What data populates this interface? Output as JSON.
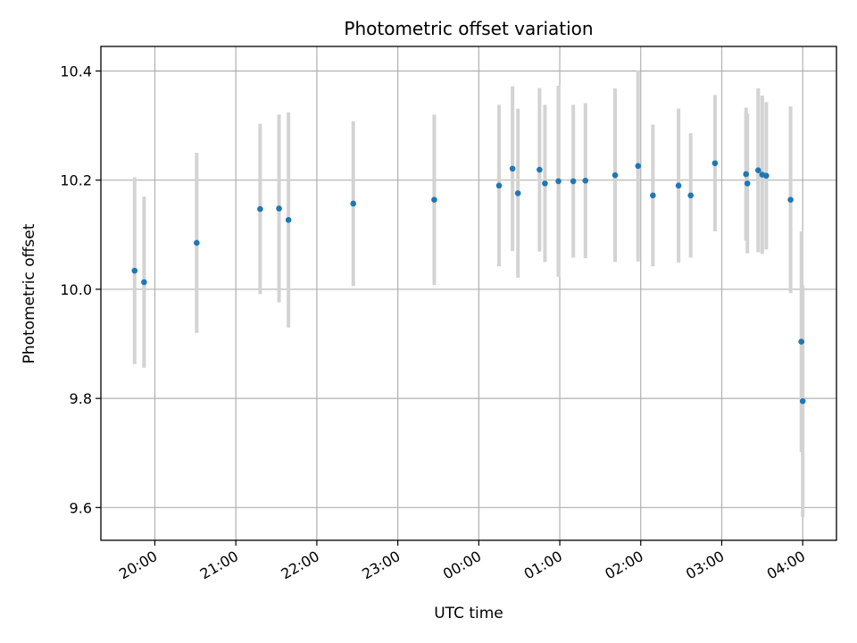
{
  "chart_data": {
    "type": "scatter",
    "title": "Photometric offset variation",
    "xlabel": "UTC time",
    "ylabel": "Photometric offset",
    "x_axis_kind": "time",
    "xlim": [
      "19:20",
      "04:25"
    ],
    "ylim": [
      9.54,
      10.445
    ],
    "grid": true,
    "x_ticks": [
      "20:00",
      "21:00",
      "22:00",
      "23:00",
      "00:00",
      "01:00",
      "02:00",
      "03:00",
      "04:00"
    ],
    "y_ticks": [
      9.6,
      9.8,
      10.0,
      10.2,
      10.4
    ],
    "y_tick_labels": [
      "9.6",
      "9.8",
      "10.0",
      "10.2",
      "10.4"
    ],
    "colors": {
      "points": "#1f77b4",
      "error_bars": "#d3d3d3",
      "grid": "#b0b0b0"
    },
    "points": [
      {
        "t": "19:45",
        "y": 10.034,
        "err": 0.171
      },
      {
        "t": "19:52",
        "y": 10.013,
        "err": 0.157
      },
      {
        "t": "20:31",
        "y": 10.085,
        "err": 0.165
      },
      {
        "t": "21:18",
        "y": 10.147,
        "err": 0.156
      },
      {
        "t": "21:32",
        "y": 10.148,
        "err": 0.172
      },
      {
        "t": "21:39",
        "y": 10.127,
        "err": 0.197
      },
      {
        "t": "22:27",
        "y": 10.157,
        "err": 0.151
      },
      {
        "t": "23:27",
        "y": 10.164,
        "err": 0.156
      },
      {
        "t": "00:15",
        "y": 10.19,
        "err": 0.148
      },
      {
        "t": "00:25",
        "y": 10.221,
        "err": 0.151
      },
      {
        "t": "00:29",
        "y": 10.176,
        "err": 0.155
      },
      {
        "t": "00:45",
        "y": 10.219,
        "err": 0.15
      },
      {
        "t": "00:49",
        "y": 10.194,
        "err": 0.144
      },
      {
        "t": "00:59",
        "y": 10.198,
        "err": 0.175
      },
      {
        "t": "01:10",
        "y": 10.198,
        "err": 0.14
      },
      {
        "t": "01:19",
        "y": 10.199,
        "err": 0.142
      },
      {
        "t": "01:41",
        "y": 10.209,
        "err": 0.159
      },
      {
        "t": "01:58",
        "y": 10.226,
        "err": 0.175
      },
      {
        "t": "02:09",
        "y": 10.172,
        "err": 0.13
      },
      {
        "t": "02:28",
        "y": 10.19,
        "err": 0.141
      },
      {
        "t": "02:37",
        "y": 10.172,
        "err": 0.114
      },
      {
        "t": "02:55",
        "y": 10.231,
        "err": 0.125
      },
      {
        "t": "03:18",
        "y": 10.211,
        "err": 0.122
      },
      {
        "t": "03:19",
        "y": 10.194,
        "err": 0.128
      },
      {
        "t": "03:27",
        "y": 10.218,
        "err": 0.15
      },
      {
        "t": "03:30",
        "y": 10.21,
        "err": 0.145
      },
      {
        "t": "03:33",
        "y": 10.208,
        "err": 0.135
      },
      {
        "t": "03:51",
        "y": 10.164,
        "err": 0.171
      },
      {
        "t": "03:59",
        "y": 9.904,
        "err": 0.202
      },
      {
        "t": "04:00",
        "y": 9.795,
        "err": 0.212
      }
    ]
  }
}
